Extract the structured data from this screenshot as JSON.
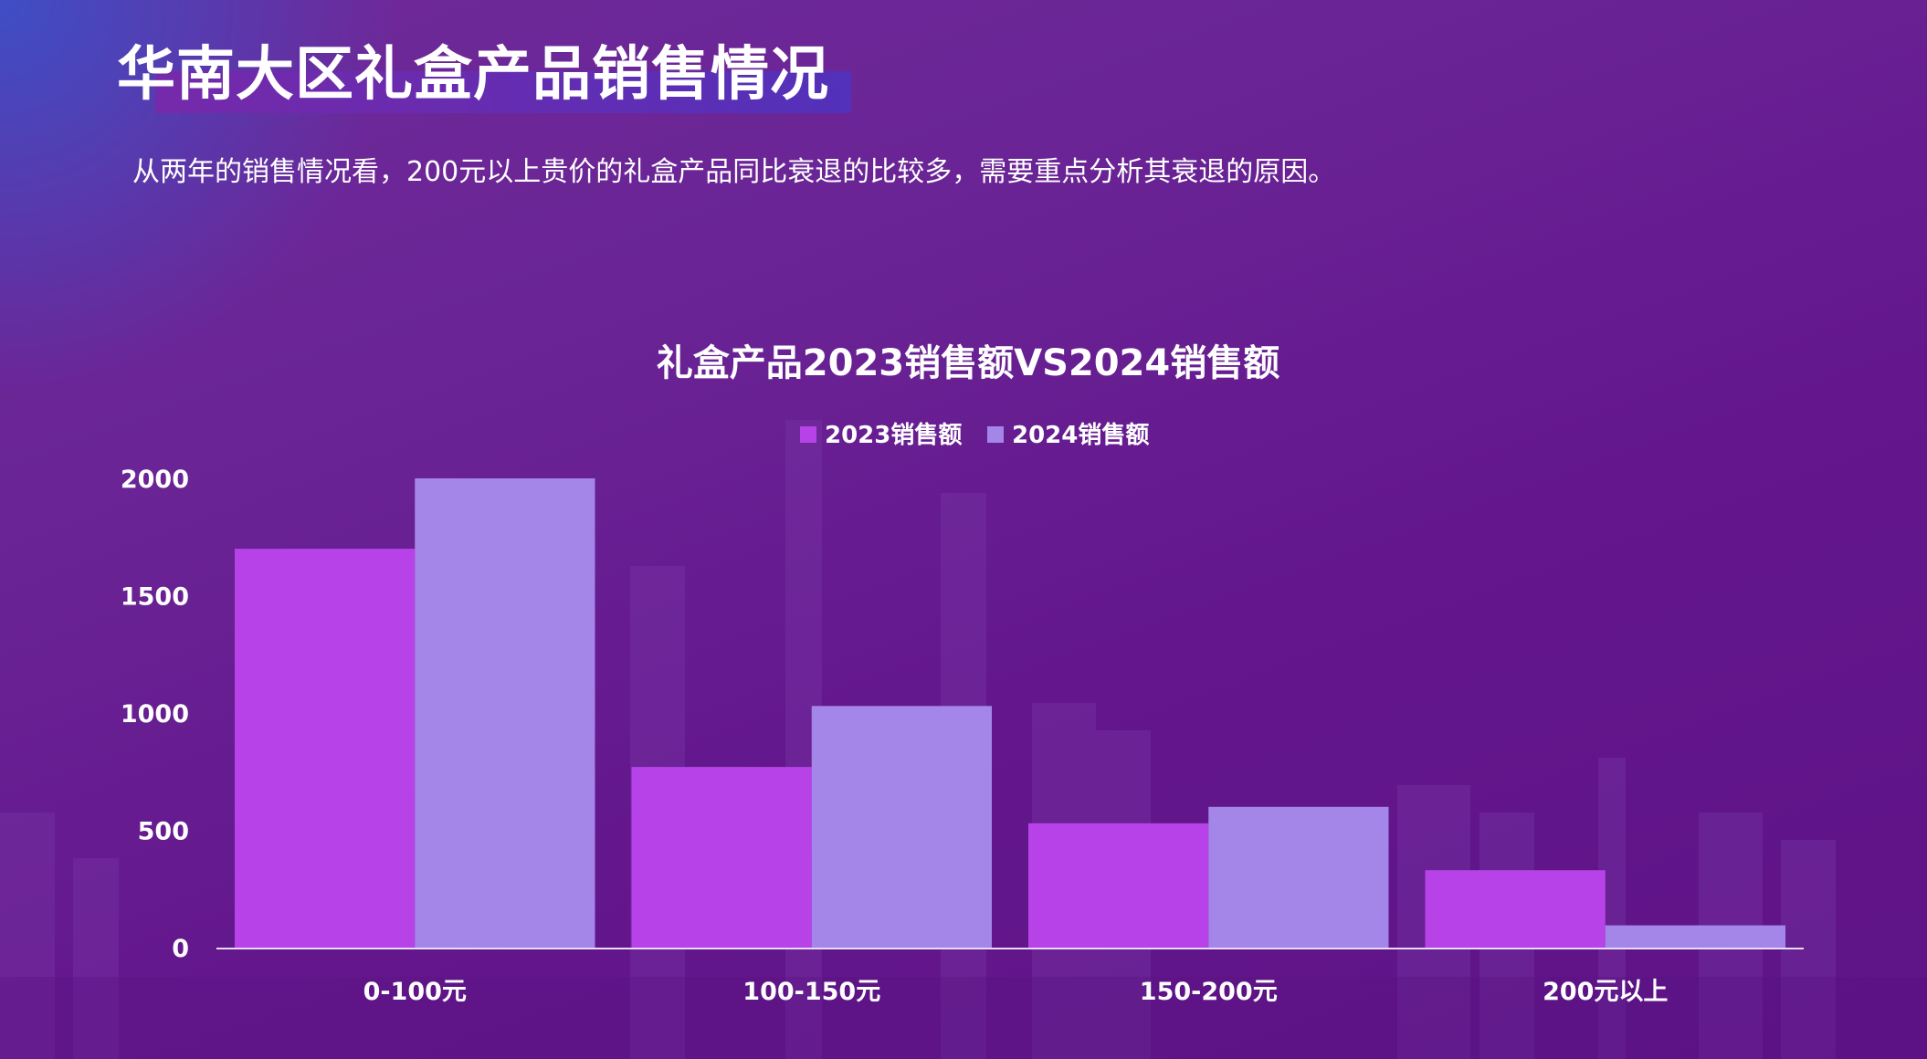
{
  "header": {
    "title": "华南大区礼盒产品销售情况",
    "subtitle": "从两年的销售情况看，200元以上贵价的礼盒产品同比衰退的比较多，需要重点分析其衰退的原因。"
  },
  "colors": {
    "series_2023": "#b743e8",
    "series_2024": "#a485e8",
    "axis": "#e8dcf5"
  },
  "chart_data": {
    "type": "bar",
    "title": "礼盒产品2023销售额VS2024销售额",
    "xlabel": "",
    "ylabel": "",
    "categories": [
      "0-100元",
      "100-150元",
      "150-200元",
      "200元以上"
    ],
    "series": [
      {
        "name": "2023销售额",
        "values": [
          1700,
          770,
          530,
          330
        ]
      },
      {
        "name": "2024销售额",
        "values": [
          2000,
          1030,
          600,
          95
        ]
      }
    ],
    "ylim": [
      0,
      2000
    ],
    "yticks": [
      0,
      500,
      1000,
      1500,
      2000
    ],
    "grid": false,
    "legend": "top"
  }
}
